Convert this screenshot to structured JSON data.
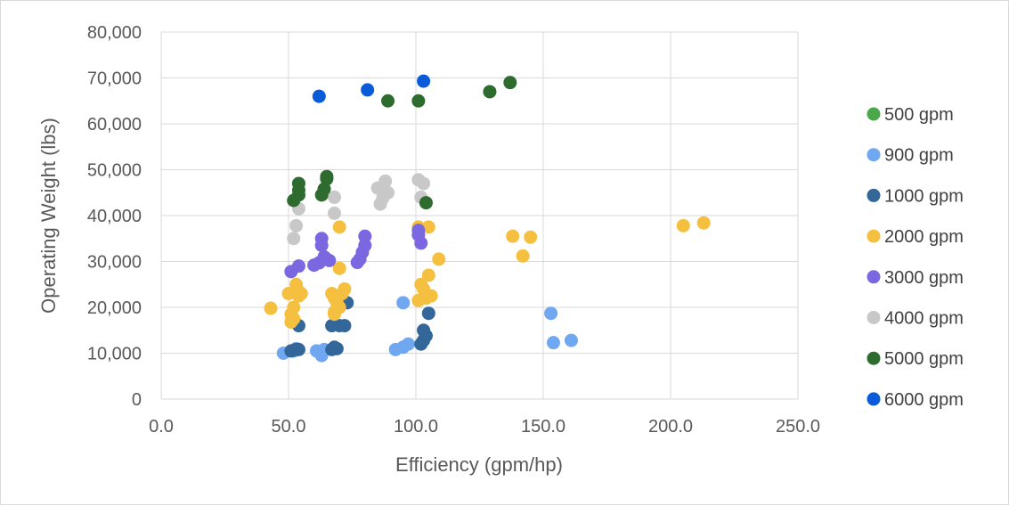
{
  "chart_data": {
    "type": "scatter",
    "title": "",
    "xlabel": "Efficiency (gpm/hp)",
    "ylabel": "Operating Weight (lbs)",
    "xlim": [
      0,
      250
    ],
    "ylim": [
      0,
      80000
    ],
    "x_ticks": [
      0,
      50,
      100,
      150,
      200,
      250
    ],
    "x_tick_labels": [
      "0.0",
      "50.0",
      "100.0",
      "150.0",
      "200.0",
      "250.0"
    ],
    "y_ticks": [
      0,
      10000,
      20000,
      30000,
      40000,
      50000,
      60000,
      70000,
      80000
    ],
    "y_tick_labels": [
      "0",
      "10,000",
      "20,000",
      "30,000",
      "40,000",
      "50,000",
      "60,000",
      "70,000",
      "80,000"
    ],
    "grid": true,
    "legend_position": "right",
    "series": [
      {
        "name": "500 gpm",
        "color": "#4aa84a",
        "points": []
      },
      {
        "name": "900 gpm",
        "color": "#6fa8f0",
        "points": [
          [
            48,
            10000
          ],
          [
            52,
            10500
          ],
          [
            53,
            11000
          ],
          [
            61,
            10500
          ],
          [
            63,
            9500
          ],
          [
            64,
            10800
          ],
          [
            92,
            10800
          ],
          [
            95,
            11300
          ],
          [
            97,
            12000
          ],
          [
            95,
            21000
          ],
          [
            153,
            18700
          ],
          [
            154,
            12300
          ],
          [
            161,
            12800
          ]
        ]
      },
      {
        "name": "1000 gpm",
        "color": "#336699",
        "points": [
          [
            51,
            10500
          ],
          [
            53,
            10800
          ],
          [
            54,
            10800
          ],
          [
            54,
            16000
          ],
          [
            67,
            10800
          ],
          [
            68,
            11300
          ],
          [
            69,
            11000
          ],
          [
            67,
            16000
          ],
          [
            70,
            16000
          ],
          [
            72,
            16000
          ],
          [
            73,
            21000
          ],
          [
            102,
            12000
          ],
          [
            103,
            12800
          ],
          [
            103,
            15000
          ],
          [
            104,
            13800
          ],
          [
            105,
            18700
          ]
        ]
      },
      {
        "name": "2000 gpm",
        "color": "#f5c040",
        "points": [
          [
            43,
            19800
          ],
          [
            50,
            23000
          ],
          [
            51,
            18500
          ],
          [
            52,
            17500
          ],
          [
            53,
            24000
          ],
          [
            54,
            22500
          ],
          [
            52,
            20000
          ],
          [
            53,
            25000
          ],
          [
            54,
            23500
          ],
          [
            55,
            23000
          ],
          [
            51,
            16800
          ],
          [
            67,
            23000
          ],
          [
            68,
            22000
          ],
          [
            69,
            21000
          ],
          [
            68,
            19000
          ],
          [
            70,
            20000
          ],
          [
            71,
            23000
          ],
          [
            72,
            24000
          ],
          [
            70,
            28500
          ],
          [
            70,
            37500
          ],
          [
            68,
            18500
          ],
          [
            101,
            21500
          ],
          [
            102,
            25000
          ],
          [
            103,
            24000
          ],
          [
            104,
            22000
          ],
          [
            105,
            27000
          ],
          [
            106,
            22500
          ],
          [
            109,
            30500
          ],
          [
            101,
            37500
          ],
          [
            105,
            37500
          ],
          [
            138,
            35500
          ],
          [
            142,
            31200
          ],
          [
            145,
            35300
          ],
          [
            205,
            37800
          ],
          [
            213,
            38400
          ]
        ]
      },
      {
        "name": "3000 gpm",
        "color": "#7b68e0",
        "points": [
          [
            51,
            27800
          ],
          [
            54,
            29000
          ],
          [
            60,
            29200
          ],
          [
            62,
            29700
          ],
          [
            63,
            35000
          ],
          [
            63,
            33500
          ],
          [
            64,
            31000
          ],
          [
            65,
            30500
          ],
          [
            66,
            30200
          ],
          [
            77,
            29800
          ],
          [
            78,
            30500
          ],
          [
            79,
            32000
          ],
          [
            80,
            33500
          ],
          [
            80,
            35500
          ],
          [
            101,
            35800
          ],
          [
            101,
            36800
          ],
          [
            102,
            34000
          ]
        ]
      },
      {
        "name": "4000 gpm",
        "color": "#c8c8c8",
        "points": [
          [
            52,
            35000
          ],
          [
            53,
            37800
          ],
          [
            54,
            41500
          ],
          [
            68,
            44000
          ],
          [
            68,
            40500
          ],
          [
            85,
            46000
          ],
          [
            86,
            42500
          ],
          [
            87,
            43800
          ],
          [
            88,
            47500
          ],
          [
            89,
            45000
          ],
          [
            101,
            47800
          ],
          [
            102,
            44000
          ],
          [
            103,
            47000
          ]
        ]
      },
      {
        "name": "5000 gpm",
        "color": "#2e6b2e",
        "points": [
          [
            52,
            43300
          ],
          [
            54,
            44500
          ],
          [
            54,
            45500
          ],
          [
            54,
            47000
          ],
          [
            63,
            44500
          ],
          [
            64,
            45800
          ],
          [
            65,
            48000
          ],
          [
            65,
            48500
          ],
          [
            104,
            42800
          ],
          [
            89,
            65000
          ],
          [
            101,
            65000
          ],
          [
            129,
            67000
          ],
          [
            137,
            69000
          ]
        ]
      },
      {
        "name": "6000 gpm",
        "color": "#0a5bd9",
        "points": [
          [
            62,
            66000
          ],
          [
            81,
            67400
          ],
          [
            103,
            69300
          ]
        ]
      }
    ]
  }
}
